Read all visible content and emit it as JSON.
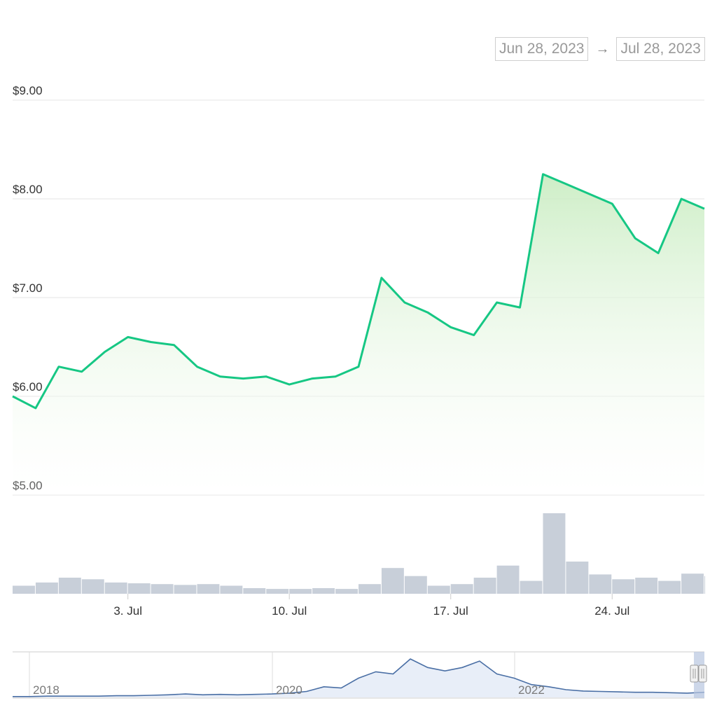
{
  "range_selector": {
    "from": "Jun 28, 2023",
    "to": "Jul 28, 2023",
    "arrow": "→"
  },
  "colors": {
    "price_line": "#16c784",
    "area_top": "#c8ecc0",
    "volume": "#c8cfd9",
    "navigator_line": "#4a6fa5",
    "navigator_fill": "#e8eef8"
  },
  "chart_data": {
    "type": "line",
    "title": "",
    "ylabel": "",
    "xlabel": "",
    "ylim": [
      5,
      9
    ],
    "y_ticks": [
      {
        "value": 9,
        "label": "$9.00"
      },
      {
        "value": 8,
        "label": "$8.00"
      },
      {
        "value": 7,
        "label": "$7.00"
      },
      {
        "value": 6,
        "label": "$6.00"
      },
      {
        "value": 5,
        "label": "$5.00"
      }
    ],
    "x_range": [
      "2023-06-28",
      "2023-07-28"
    ],
    "x_ticks": [
      {
        "date": "2023-07-03",
        "label": "3. Jul"
      },
      {
        "date": "2023-07-10",
        "label": "10. Jul"
      },
      {
        "date": "2023-07-17",
        "label": "17. Jul"
      },
      {
        "date": "2023-07-24",
        "label": "24. Jul"
      }
    ],
    "grid": true,
    "series": [
      {
        "x": [
          "2023-06-28",
          "2023-06-29",
          "2023-06-30",
          "2023-07-01",
          "2023-07-02",
          "2023-07-03",
          "2023-07-04",
          "2023-07-05",
          "2023-07-06",
          "2023-07-07",
          "2023-07-08",
          "2023-07-09",
          "2023-07-10",
          "2023-07-11",
          "2023-07-12",
          "2023-07-13",
          "2023-07-14",
          "2023-07-15",
          "2023-07-16",
          "2023-07-17",
          "2023-07-18",
          "2023-07-19",
          "2023-07-20",
          "2023-07-21",
          "2023-07-22",
          "2023-07-23",
          "2023-07-24",
          "2023-07-25",
          "2023-07-26",
          "2023-07-27",
          "2023-07-28"
        ],
        "values": [
          6.0,
          5.88,
          6.3,
          6.25,
          6.45,
          6.6,
          6.55,
          6.52,
          6.3,
          6.2,
          6.18,
          6.2,
          6.12,
          6.18,
          6.2,
          6.3,
          7.2,
          6.95,
          6.85,
          6.7,
          6.62,
          6.95,
          6.9,
          8.25,
          8.15,
          8.05,
          7.95,
          7.6,
          7.45,
          8.0,
          7.9
        ]
      }
    ],
    "volume": {
      "x": [
        "2023-06-28",
        "2023-06-29",
        "2023-06-30",
        "2023-07-01",
        "2023-07-02",
        "2023-07-03",
        "2023-07-04",
        "2023-07-05",
        "2023-07-06",
        "2023-07-07",
        "2023-07-08",
        "2023-07-09",
        "2023-07-10",
        "2023-07-11",
        "2023-07-12",
        "2023-07-13",
        "2023-07-14",
        "2023-07-15",
        "2023-07-16",
        "2023-07-17",
        "2023-07-18",
        "2023-07-19",
        "2023-07-20",
        "2023-07-21",
        "2023-07-22",
        "2023-07-23",
        "2023-07-24",
        "2023-07-25",
        "2023-07-26",
        "2023-07-27",
        "2023-07-28"
      ],
      "values": [
        0.1,
        0.14,
        0.2,
        0.18,
        0.14,
        0.13,
        0.12,
        0.11,
        0.12,
        0.1,
        0.07,
        0.06,
        0.06,
        0.07,
        0.06,
        0.12,
        0.32,
        0.22,
        0.1,
        0.12,
        0.2,
        0.35,
        0.16,
        1.0,
        0.4,
        0.24,
        0.18,
        0.2,
        0.16,
        0.25,
        0.22
      ]
    },
    "navigator": {
      "x_labels": [
        "2018",
        "2020",
        "2022"
      ],
      "values": [
        0.02,
        0.02,
        0.03,
        0.03,
        0.03,
        0.03,
        0.04,
        0.04,
        0.05,
        0.06,
        0.08,
        0.06,
        0.07,
        0.06,
        0.07,
        0.08,
        0.1,
        0.14,
        0.25,
        0.22,
        0.45,
        0.6,
        0.55,
        0.9,
        0.7,
        0.62,
        0.7,
        0.85,
        0.55,
        0.45,
        0.3,
        0.25,
        0.18,
        0.15,
        0.14,
        0.13,
        0.12,
        0.12,
        0.11,
        0.1,
        0.12
      ]
    }
  }
}
